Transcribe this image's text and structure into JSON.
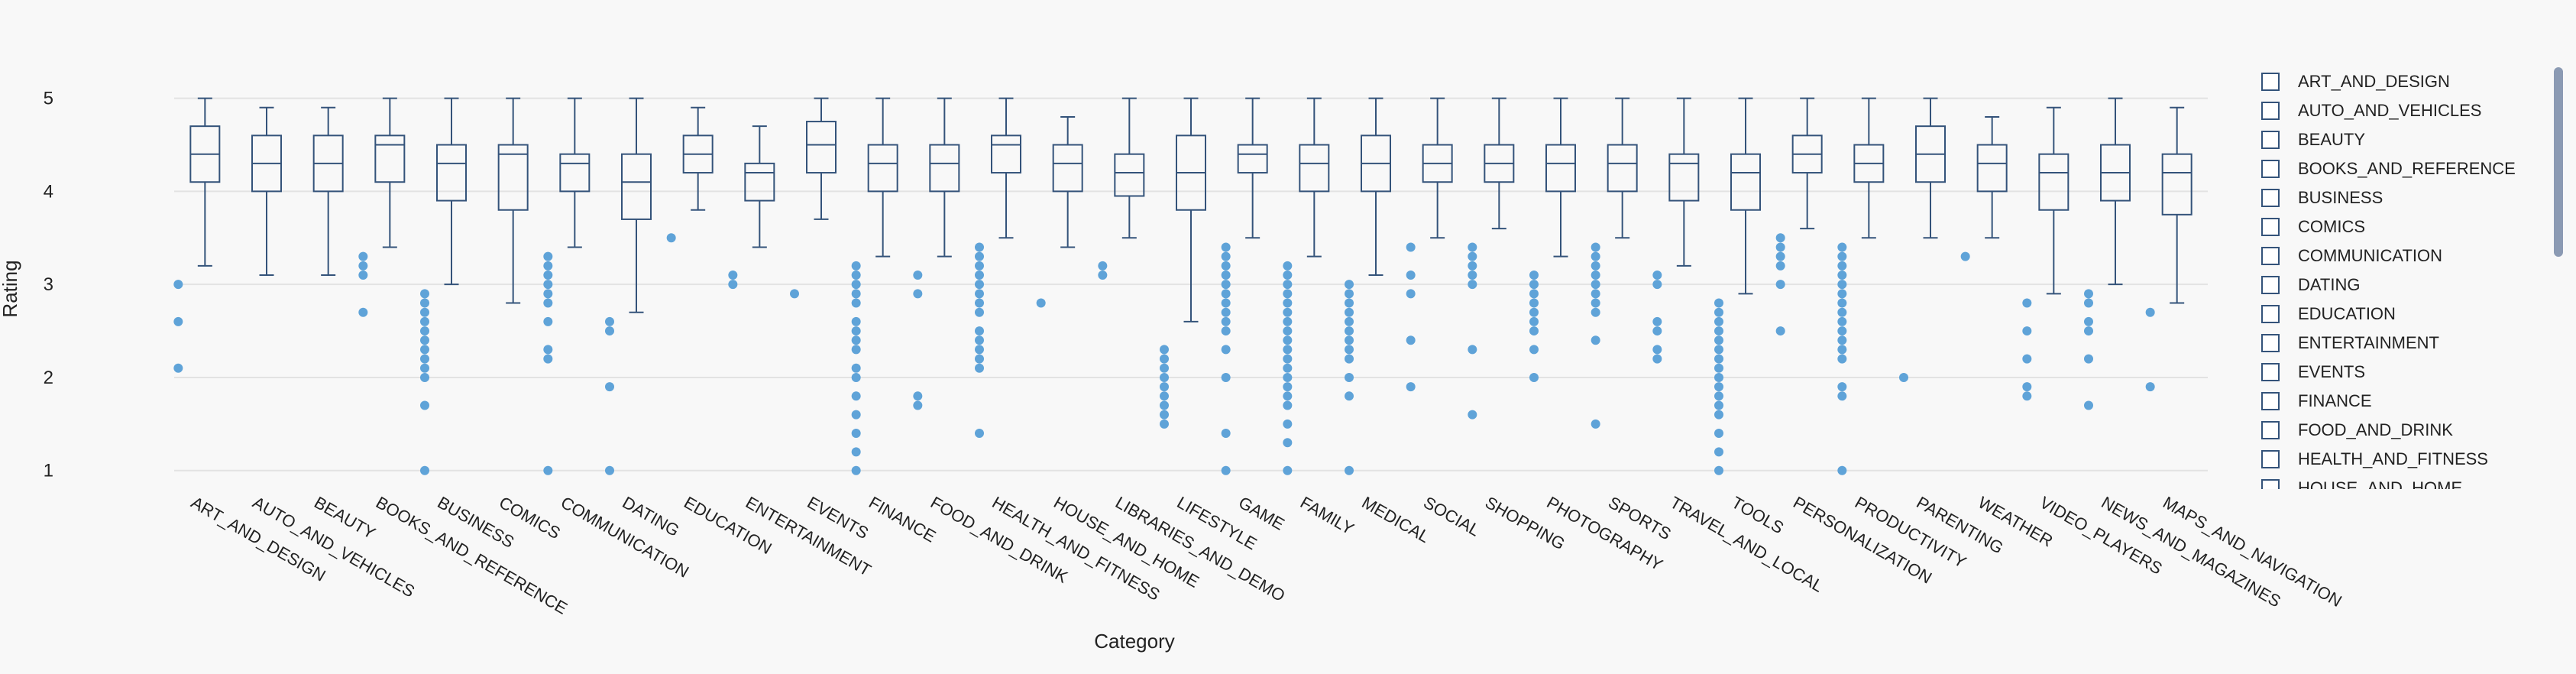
{
  "chart_data": {
    "type": "box",
    "xlabel": "Category",
    "ylabel": "Rating",
    "ylim": [
      0.85,
      5.35
    ],
    "yticks": [
      1,
      2,
      3,
      4,
      5
    ],
    "grid": true,
    "legend_position": "right",
    "box_color": "#34537a",
    "outlier_color": "#5fa3d8",
    "boxes": [
      {
        "category": "ART_AND_DESIGN",
        "lower": 3.2,
        "q1": 4.1,
        "median": 4.4,
        "q3": 4.7,
        "upper": 5.0,
        "outliers": [
          3.0,
          2.6,
          2.1
        ]
      },
      {
        "category": "AUTO_AND_VEHICLES",
        "lower": 3.1,
        "q1": 4.0,
        "median": 4.3,
        "q3": 4.6,
        "upper": 4.9,
        "outliers": []
      },
      {
        "category": "BEAUTY",
        "lower": 3.1,
        "q1": 4.0,
        "median": 4.3,
        "q3": 4.6,
        "upper": 4.9,
        "outliers": []
      },
      {
        "category": "BOOKS_AND_REFERENCE",
        "lower": 3.4,
        "q1": 4.1,
        "median": 4.5,
        "q3": 4.6,
        "upper": 5.0,
        "outliers": [
          3.3,
          3.2,
          3.1,
          2.7
        ]
      },
      {
        "category": "BUSINESS",
        "lower": 3.0,
        "q1": 3.9,
        "median": 4.3,
        "q3": 4.5,
        "upper": 5.0,
        "outliers": [
          2.9,
          2.8,
          2.7,
          2.6,
          2.5,
          2.4,
          2.3,
          2.2,
          2.1,
          2.0,
          1.7,
          1.0
        ]
      },
      {
        "category": "COMICS",
        "lower": 2.8,
        "q1": 3.8,
        "median": 4.4,
        "q3": 4.5,
        "upper": 5.0,
        "outliers": []
      },
      {
        "category": "COMMUNICATION",
        "lower": 3.4,
        "q1": 4.0,
        "median": 4.3,
        "q3": 4.4,
        "upper": 5.0,
        "outliers": [
          3.3,
          3.2,
          3.1,
          3.0,
          2.9,
          2.8,
          2.6,
          2.3,
          2.2,
          1.0
        ]
      },
      {
        "category": "DATING",
        "lower": 2.7,
        "q1": 3.7,
        "median": 4.1,
        "q3": 4.4,
        "upper": 5.0,
        "outliers": [
          2.6,
          2.5,
          1.9,
          1.0
        ]
      },
      {
        "category": "EDUCATION",
        "lower": 3.8,
        "q1": 4.2,
        "median": 4.4,
        "q3": 4.6,
        "upper": 4.9,
        "outliers": [
          3.5
        ]
      },
      {
        "category": "ENTERTAINMENT",
        "lower": 3.4,
        "q1": 3.9,
        "median": 4.2,
        "q3": 4.3,
        "upper": 4.7,
        "outliers": [
          3.1,
          3.0
        ]
      },
      {
        "category": "EVENTS",
        "lower": 3.7,
        "q1": 4.2,
        "median": 4.5,
        "q3": 4.75,
        "upper": 5.0,
        "outliers": [
          2.9
        ]
      },
      {
        "category": "FINANCE",
        "lower": 3.3,
        "q1": 4.0,
        "median": 4.3,
        "q3": 4.5,
        "upper": 5.0,
        "outliers": [
          3.2,
          3.1,
          3.0,
          2.9,
          2.8,
          2.6,
          2.5,
          2.4,
          2.3,
          2.1,
          2.0,
          1.8,
          1.6,
          1.4,
          1.2,
          1.0
        ]
      },
      {
        "category": "FOOD_AND_DRINK",
        "lower": 3.3,
        "q1": 4.0,
        "median": 4.3,
        "q3": 4.5,
        "upper": 5.0,
        "outliers": [
          3.1,
          2.9,
          1.8,
          1.7
        ]
      },
      {
        "category": "HEALTH_AND_FITNESS",
        "lower": 3.5,
        "q1": 4.2,
        "median": 4.5,
        "q3": 4.6,
        "upper": 5.0,
        "outliers": [
          3.4,
          3.3,
          3.2,
          3.1,
          3.0,
          2.9,
          2.8,
          2.7,
          2.5,
          2.4,
          2.3,
          2.2,
          2.1,
          1.4
        ]
      },
      {
        "category": "HOUSE_AND_HOME",
        "lower": 3.4,
        "q1": 4.0,
        "median": 4.3,
        "q3": 4.5,
        "upper": 4.8,
        "outliers": [
          2.8
        ]
      },
      {
        "category": "LIBRARIES_AND_DEMO",
        "lower": 3.5,
        "q1": 3.95,
        "median": 4.2,
        "q3": 4.4,
        "upper": 5.0,
        "outliers": [
          3.2,
          3.1
        ]
      },
      {
        "category": "LIFESTYLE",
        "lower": 2.6,
        "q1": 3.8,
        "median": 4.2,
        "q3": 4.6,
        "upper": 5.0,
        "outliers": [
          2.3,
          2.2,
          2.1,
          2.0,
          1.9,
          1.8,
          1.7,
          1.6,
          1.5
        ]
      },
      {
        "category": "GAME",
        "lower": 3.5,
        "q1": 4.2,
        "median": 4.4,
        "q3": 4.5,
        "upper": 5.0,
        "outliers": [
          3.4,
          3.3,
          3.2,
          3.1,
          3.0,
          2.9,
          2.8,
          2.7,
          2.6,
          2.5,
          2.3,
          2.0,
          1.4,
          1.0
        ]
      },
      {
        "category": "FAMILY",
        "lower": 3.3,
        "q1": 4.0,
        "median": 4.3,
        "q3": 4.5,
        "upper": 5.0,
        "outliers": [
          3.2,
          3.1,
          3.0,
          2.9,
          2.8,
          2.7,
          2.6,
          2.5,
          2.4,
          2.3,
          2.2,
          2.1,
          2.0,
          1.9,
          1.8,
          1.7,
          1.5,
          1.3,
          1.0
        ]
      },
      {
        "category": "MEDICAL",
        "lower": 3.1,
        "q1": 4.0,
        "median": 4.3,
        "q3": 4.6,
        "upper": 5.0,
        "outliers": [
          3.0,
          2.9,
          2.8,
          2.7,
          2.6,
          2.5,
          2.4,
          2.3,
          2.2,
          2.0,
          1.8,
          1.0
        ]
      },
      {
        "category": "SOCIAL",
        "lower": 3.5,
        "q1": 4.1,
        "median": 4.3,
        "q3": 4.5,
        "upper": 5.0,
        "outliers": [
          3.4,
          3.1,
          2.9,
          2.4,
          1.9
        ]
      },
      {
        "category": "SHOPPING",
        "lower": 3.6,
        "q1": 4.1,
        "median": 4.3,
        "q3": 4.5,
        "upper": 5.0,
        "outliers": [
          3.4,
          3.3,
          3.2,
          3.1,
          3.0,
          2.3,
          1.6
        ]
      },
      {
        "category": "PHOTOGRAPHY",
        "lower": 3.3,
        "q1": 4.0,
        "median": 4.3,
        "q3": 4.5,
        "upper": 5.0,
        "outliers": [
          3.1,
          3.0,
          2.9,
          2.8,
          2.7,
          2.6,
          2.5,
          2.3,
          2.0
        ]
      },
      {
        "category": "SPORTS",
        "lower": 3.5,
        "q1": 4.0,
        "median": 4.3,
        "q3": 4.5,
        "upper": 5.0,
        "outliers": [
          3.4,
          3.3,
          3.2,
          3.1,
          3.0,
          2.9,
          2.8,
          2.7,
          2.4,
          1.5
        ]
      },
      {
        "category": "TRAVEL_AND_LOCAL",
        "lower": 3.2,
        "q1": 3.9,
        "median": 4.3,
        "q3": 4.4,
        "upper": 5.0,
        "outliers": [
          3.1,
          3.0,
          2.6,
          2.5,
          2.3,
          2.2
        ]
      },
      {
        "category": "TOOLS",
        "lower": 2.9,
        "q1": 3.8,
        "median": 4.2,
        "q3": 4.4,
        "upper": 5.0,
        "outliers": [
          2.8,
          2.7,
          2.6,
          2.5,
          2.4,
          2.3,
          2.2,
          2.1,
          2.0,
          1.9,
          1.8,
          1.7,
          1.6,
          1.4,
          1.2,
          1.0
        ]
      },
      {
        "category": "PERSONALIZATION",
        "lower": 3.6,
        "q1": 4.2,
        "median": 4.4,
        "q3": 4.6,
        "upper": 5.0,
        "outliers": [
          3.5,
          3.4,
          3.3,
          3.2,
          3.0,
          2.5
        ]
      },
      {
        "category": "PRODUCTIVITY",
        "lower": 3.5,
        "q1": 4.1,
        "median": 4.3,
        "q3": 4.5,
        "upper": 5.0,
        "outliers": [
          3.4,
          3.3,
          3.2,
          3.1,
          3.0,
          2.9,
          2.8,
          2.7,
          2.6,
          2.5,
          2.4,
          2.3,
          2.2,
          1.9,
          1.8,
          1.0
        ]
      },
      {
        "category": "PARENTING",
        "lower": 3.5,
        "q1": 4.1,
        "median": 4.4,
        "q3": 4.7,
        "upper": 5.0,
        "outliers": [
          2.0
        ]
      },
      {
        "category": "WEATHER",
        "lower": 3.5,
        "q1": 4.0,
        "median": 4.3,
        "q3": 4.5,
        "upper": 4.8,
        "outliers": [
          3.3
        ]
      },
      {
        "category": "VIDEO_PLAYERS",
        "lower": 2.9,
        "q1": 3.8,
        "median": 4.2,
        "q3": 4.4,
        "upper": 4.9,
        "outliers": [
          2.8,
          2.5,
          2.2,
          1.9,
          1.8
        ]
      },
      {
        "category": "NEWS_AND_MAGAZINES",
        "lower": 3.0,
        "q1": 3.9,
        "median": 4.2,
        "q3": 4.5,
        "upper": 5.0,
        "outliers": [
          2.9,
          2.8,
          2.6,
          2.5,
          2.2,
          1.7
        ]
      },
      {
        "category": "MAPS_AND_NAVIGATION",
        "lower": 2.8,
        "q1": 3.75,
        "median": 4.2,
        "q3": 4.4,
        "upper": 4.9,
        "outliers": [
          2.7,
          1.9
        ]
      }
    ]
  },
  "legend": {
    "items": [
      "ART_AND_DESIGN",
      "AUTO_AND_VEHICLES",
      "BEAUTY",
      "BOOKS_AND_REFERENCE",
      "BUSINESS",
      "COMICS",
      "COMMUNICATION",
      "DATING",
      "EDUCATION",
      "ENTERTAINMENT",
      "EVENTS",
      "FINANCE",
      "FOOD_AND_DRINK",
      "HEALTH_AND_FITNESS",
      "HOUSE_AND_HOME"
    ]
  }
}
